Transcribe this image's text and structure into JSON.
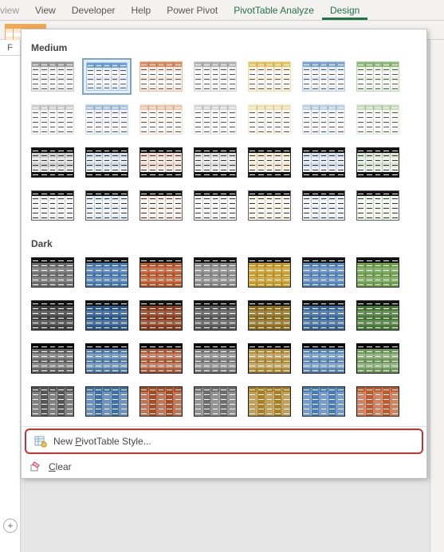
{
  "ribbon": {
    "tabs": [
      {
        "label": "view",
        "partial": true
      },
      {
        "label": "View"
      },
      {
        "label": "Developer"
      },
      {
        "label": "Help"
      },
      {
        "label": "Power Pivot"
      },
      {
        "label": "PivotTable Analyze",
        "context": true
      },
      {
        "label": "Design",
        "context": true,
        "active": true
      }
    ]
  },
  "gallery": {
    "sections": [
      {
        "name": "Medium",
        "rows": [
          {
            "styletype": "med-light",
            "colors": [
              "#9e9e9e",
              "#6fa0d8",
              "#e28a5f",
              "#b5b5b5",
              "#e8c462",
              "#7ea6d8",
              "#8fbb7a"
            ],
            "selectedIndex": 1
          },
          {
            "styletype": "med-light",
            "colors": [
              "#cfcfcf",
              "#a9c4e4",
              "#f0c6ad",
              "#d6d6d6",
              "#f3e0b0",
              "#bcd0e8",
              "#c6dcb8"
            ]
          },
          {
            "styletype": "med-dark",
            "colors": [
              "#333333",
              "#3f6fa5",
              "#c05a2e",
              "#6e6e6e",
              "#c79a2a",
              "#4a7bb5",
              "#5f8f4a"
            ]
          },
          {
            "styletype": "med-band",
            "colors": [
              "#cfcfcf",
              "#a9c4e4",
              "#f0c6ad",
              "#d6d6d6",
              "#f3e0b0",
              "#bcd0e8",
              "#c6dcb8"
            ]
          }
        ]
      },
      {
        "name": "Dark",
        "rows": [
          {
            "styletype": "dark-solid",
            "colors": [
              "#6e6e6e",
              "#4a7bb5",
              "#c05a2e",
              "#8a8a8a",
              "#c79a2a",
              "#5a86bf",
              "#6fa04f"
            ]
          },
          {
            "styletype": "dark-solid",
            "colors": [
              "#444444",
              "#2f5a8f",
              "#8f3f1f",
              "#5a5a5a",
              "#8f6f1f",
              "#3f6a9f",
              "#4a7a3a"
            ]
          },
          {
            "styletype": "dark-band",
            "colors": [
              "#555555",
              "#3f6fa5",
              "#a84a24",
              "#6e6e6e",
              "#a87f24",
              "#4a7bb5",
              "#5f8f4a"
            ]
          },
          {
            "styletype": "dark-cols",
            "colors": [
              "#555555",
              "#3f6fa5",
              "#a84a24",
              "#6e6e6e",
              "#a87f24",
              "#4a7bb5",
              "#c05a2e"
            ]
          }
        ]
      }
    ]
  },
  "footer": {
    "newStyle": {
      "label": "New PivotTable Style...",
      "hotkey": "P"
    },
    "clear": {
      "label": "Clear",
      "hotkey": "C"
    }
  },
  "leftCell": "F"
}
